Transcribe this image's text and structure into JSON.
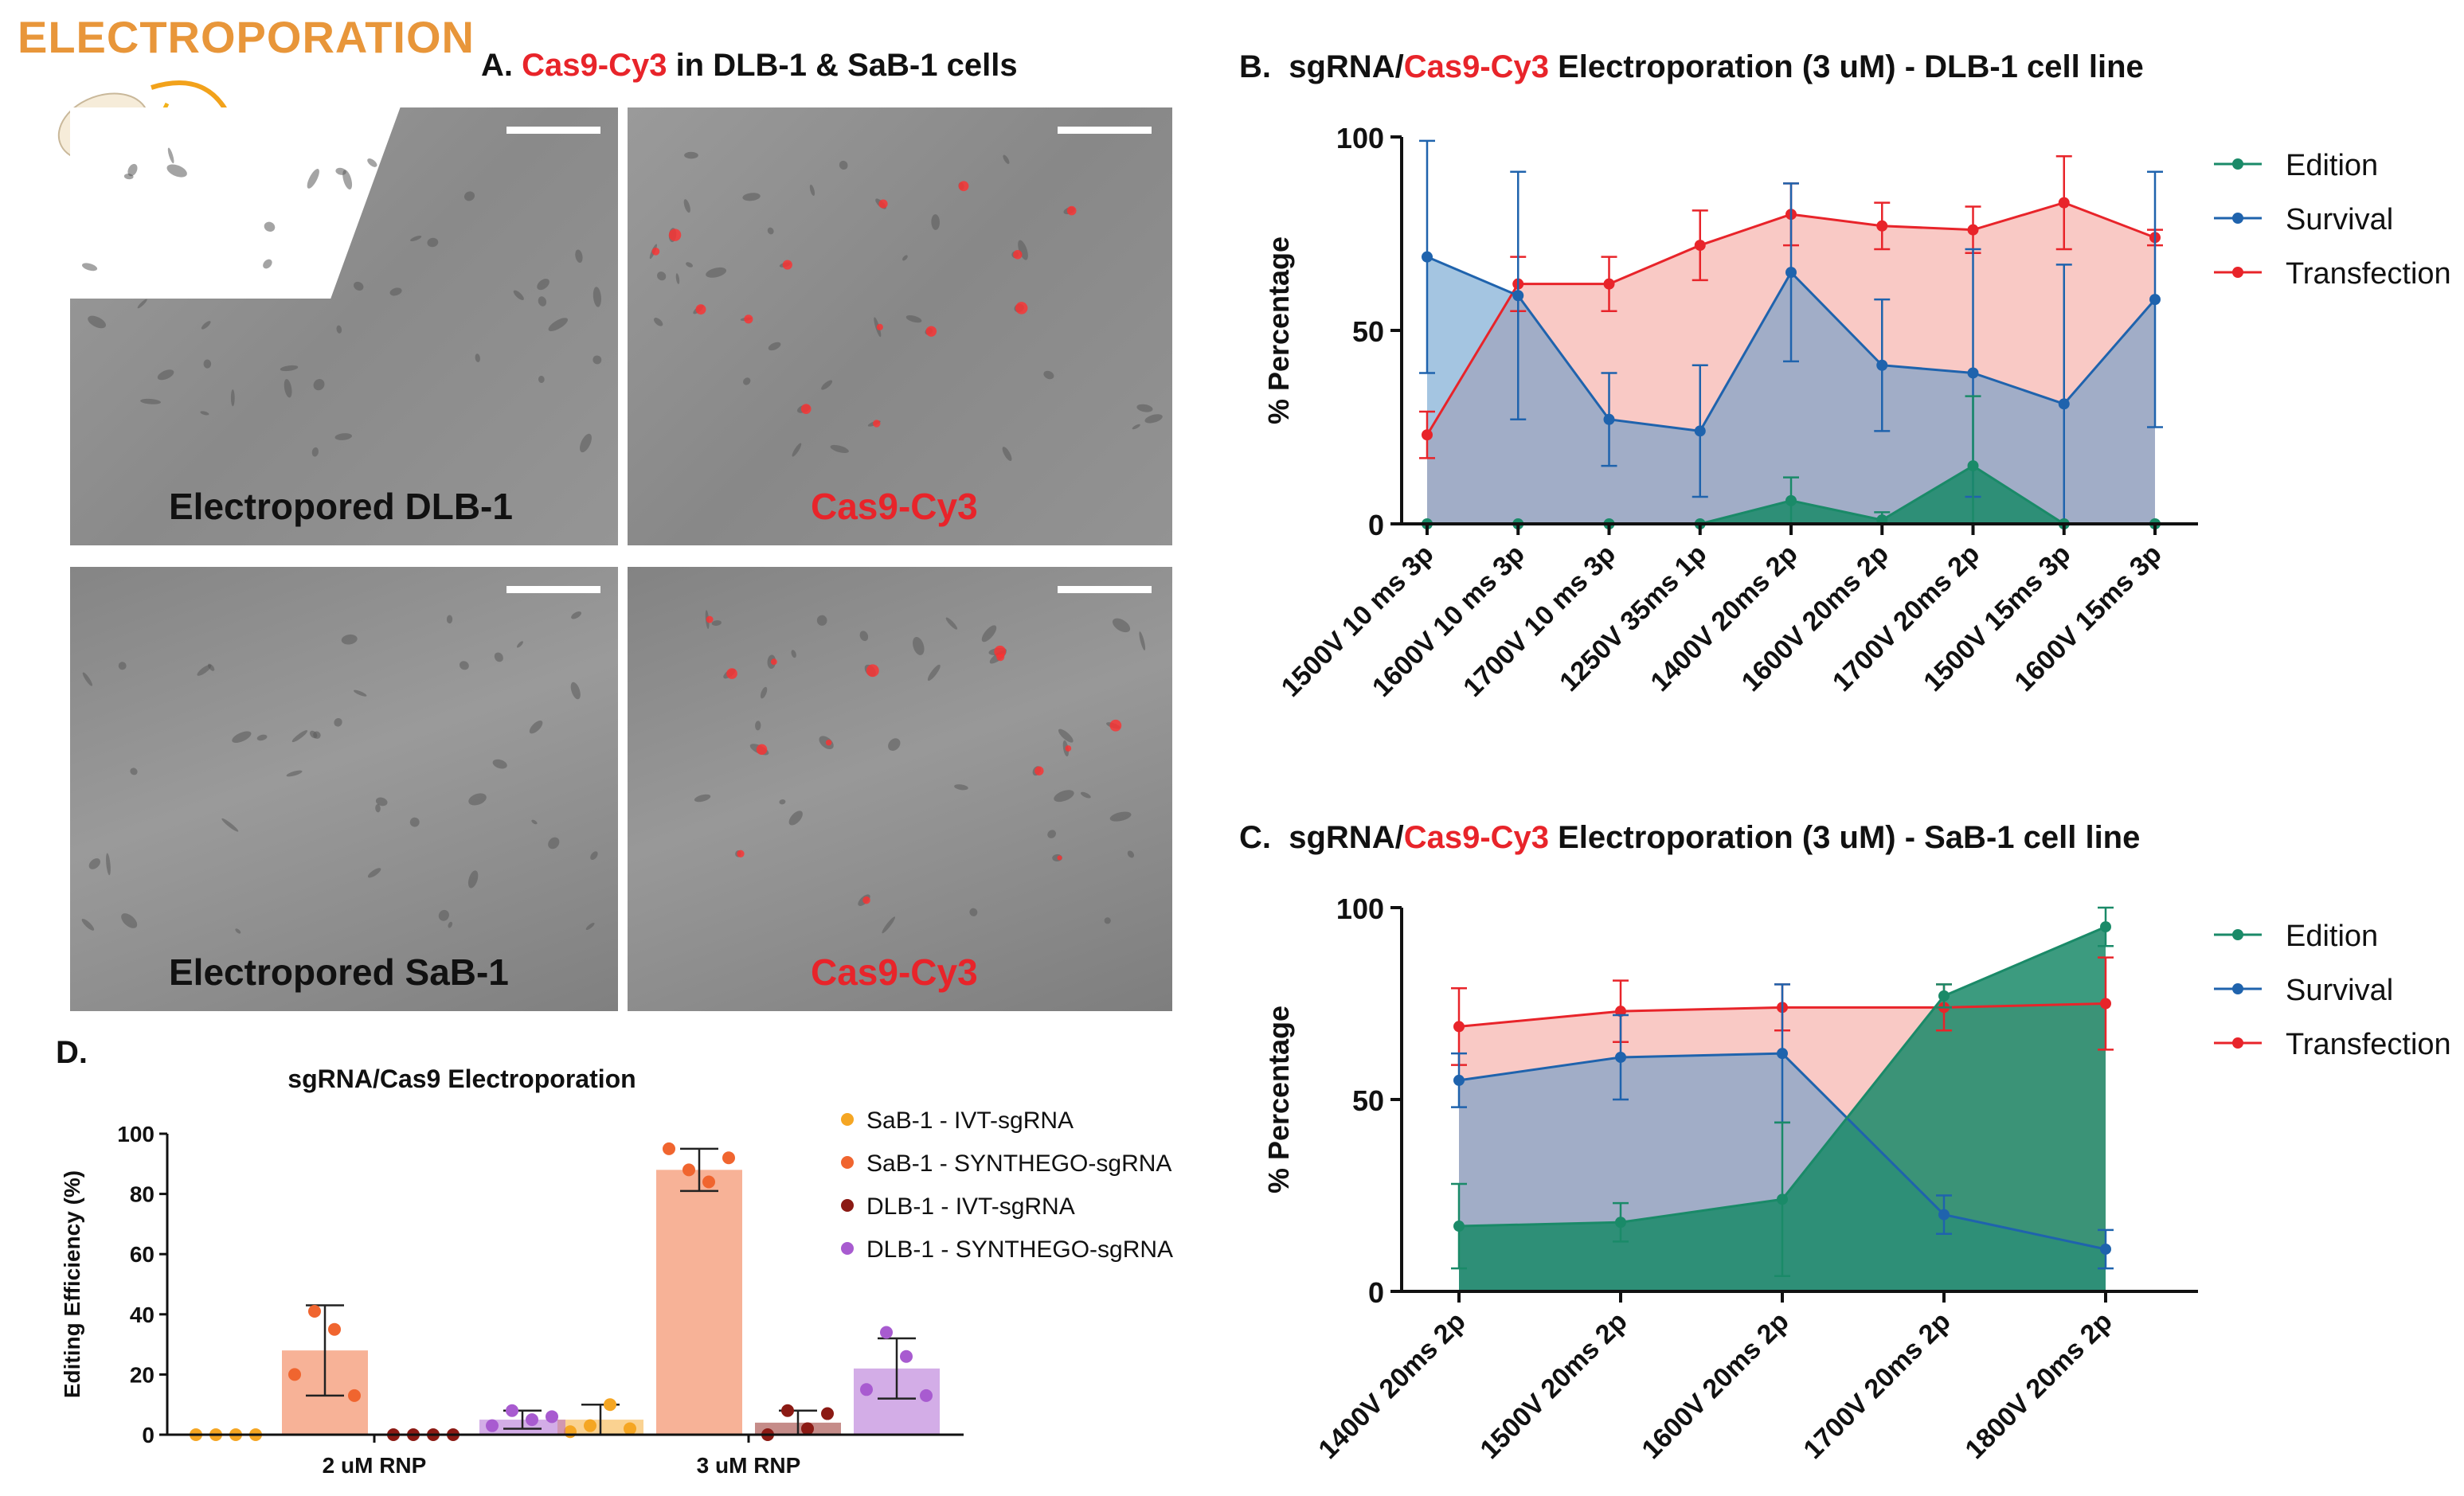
{
  "brand_title": "ELECTROPORATION",
  "panel_a": {
    "letter": "A.",
    "title_red": "Cas9-Cy3",
    "title_rest": " in DLB-1 & SaB-1 cells",
    "images": [
      {
        "label": "Electropored DLB-1"
      },
      {
        "label": "Cas9-Cy3"
      },
      {
        "label": "Electropored SaB-1"
      },
      {
        "label": "Cas9-Cy3"
      }
    ]
  },
  "panel_b": {
    "letter": "B.",
    "title_pre": "sgRNA/",
    "title_red": "Cas9-Cy3",
    "title_post": " Electroporation (3 uM) - DLB-1 cell line"
  },
  "panel_c": {
    "letter": "C.",
    "title_pre": "sgRNA/",
    "title_red": "Cas9-Cy3",
    "title_post": " Electroporation (3 uM) - SaB-1 cell line"
  },
  "panel_d": {
    "letter": "D."
  },
  "colors": {
    "edition": "#1a8a68",
    "survival": "#1f63ad",
    "transfection": "#e8242a",
    "sab1_ivt": "#f5a623",
    "sab1_synthego": "#f0652f",
    "dlb1_ivt": "#8b1a14",
    "dlb1_synthego": "#a85bd0"
  },
  "chart_data": [
    {
      "id": "B",
      "type": "area",
      "ylabel": "% Percentage",
      "ylim": [
        0,
        100
      ],
      "yticks": [
        0,
        50,
        100
      ],
      "categories": [
        "1500V 10 ms 3p",
        "1600V 10 ms 3p",
        "1700V 10 ms 3p",
        "1250V 35ms 1p",
        "1400V 20ms 2p",
        "1600V 20ms 2p",
        "1700V 20ms 2p",
        "1500V 15ms 3p",
        "1600V 15ms 3p"
      ],
      "legend_position": "top-right",
      "series": [
        {
          "name": "Transfection",
          "values": [
            23,
            62,
            62,
            72,
            80,
            77,
            76,
            83,
            74
          ],
          "err": [
            6,
            7,
            7,
            9,
            8,
            6,
            6,
            12,
            2
          ]
        },
        {
          "name": "Survival",
          "values": [
            69,
            59,
            27,
            24,
            65,
            41,
            39,
            31,
            58
          ],
          "err": [
            30,
            32,
            12,
            17,
            23,
            17,
            32,
            36,
            33
          ]
        },
        {
          "name": "Edition",
          "values": [
            0,
            0,
            0,
            0,
            6,
            1,
            15,
            0,
            0
          ],
          "err": [
            0,
            0,
            0,
            0,
            6,
            2,
            18,
            0,
            0
          ]
        }
      ]
    },
    {
      "id": "C",
      "type": "area",
      "ylabel": "% Percentage",
      "ylim": [
        0,
        100
      ],
      "yticks": [
        0,
        50,
        100
      ],
      "categories": [
        "1400V 20ms 2p",
        "1500V 20ms 2p",
        "1600V 20ms 2p",
        "1700V 20ms 2p",
        "1800V 20ms 2p"
      ],
      "legend_position": "top-right",
      "series": [
        {
          "name": "Transfection",
          "values": [
            69,
            73,
            74,
            74,
            75
          ],
          "err": [
            10,
            8,
            6,
            6,
            12
          ]
        },
        {
          "name": "Survival",
          "values": [
            55,
            61,
            62,
            20,
            11
          ],
          "err": [
            7,
            11,
            18,
            5,
            5
          ]
        },
        {
          "name": "Edition",
          "values": [
            17,
            18,
            24,
            77,
            95
          ],
          "err": [
            11,
            5,
            20,
            3,
            5
          ]
        }
      ]
    },
    {
      "id": "D",
      "type": "bar",
      "title": "sgRNA/Cas9 Electroporation",
      "ylabel": "Editing Efficiency (%)",
      "ylim": [
        0,
        100
      ],
      "yticks": [
        0,
        20,
        40,
        60,
        80,
        100
      ],
      "categories": [
        "2 uM RNP",
        "3 uM RNP"
      ],
      "legend_position": "top-right",
      "series": [
        {
          "name": "SaB-1 - IVT-sgRNA",
          "values": [
            0,
            5
          ],
          "err": [
            0,
            5
          ],
          "points": [
            [
              0,
              0,
              0,
              0
            ],
            [
              1,
              3,
              10,
              2
            ]
          ]
        },
        {
          "name": "SaB-1 - SYNTHEGO-sgRNA",
          "values": [
            28,
            88
          ],
          "err": [
            15,
            7
          ],
          "points": [
            [
              20,
              41,
              35,
              13
            ],
            [
              95,
              88,
              84,
              92
            ]
          ]
        },
        {
          "name": "DLB-1 - IVT-sgRNA",
          "values": [
            0,
            4
          ],
          "err": [
            0,
            4
          ],
          "points": [
            [
              0,
              0,
              0,
              0
            ],
            [
              0,
              8,
              2,
              7
            ]
          ]
        },
        {
          "name": "DLB-1 - SYNTHEGO-sgRNA",
          "values": [
            5,
            22
          ],
          "err": [
            3,
            10
          ],
          "points": [
            [
              3,
              8,
              5,
              6
            ],
            [
              15,
              34,
              26,
              13
            ]
          ]
        }
      ]
    }
  ]
}
